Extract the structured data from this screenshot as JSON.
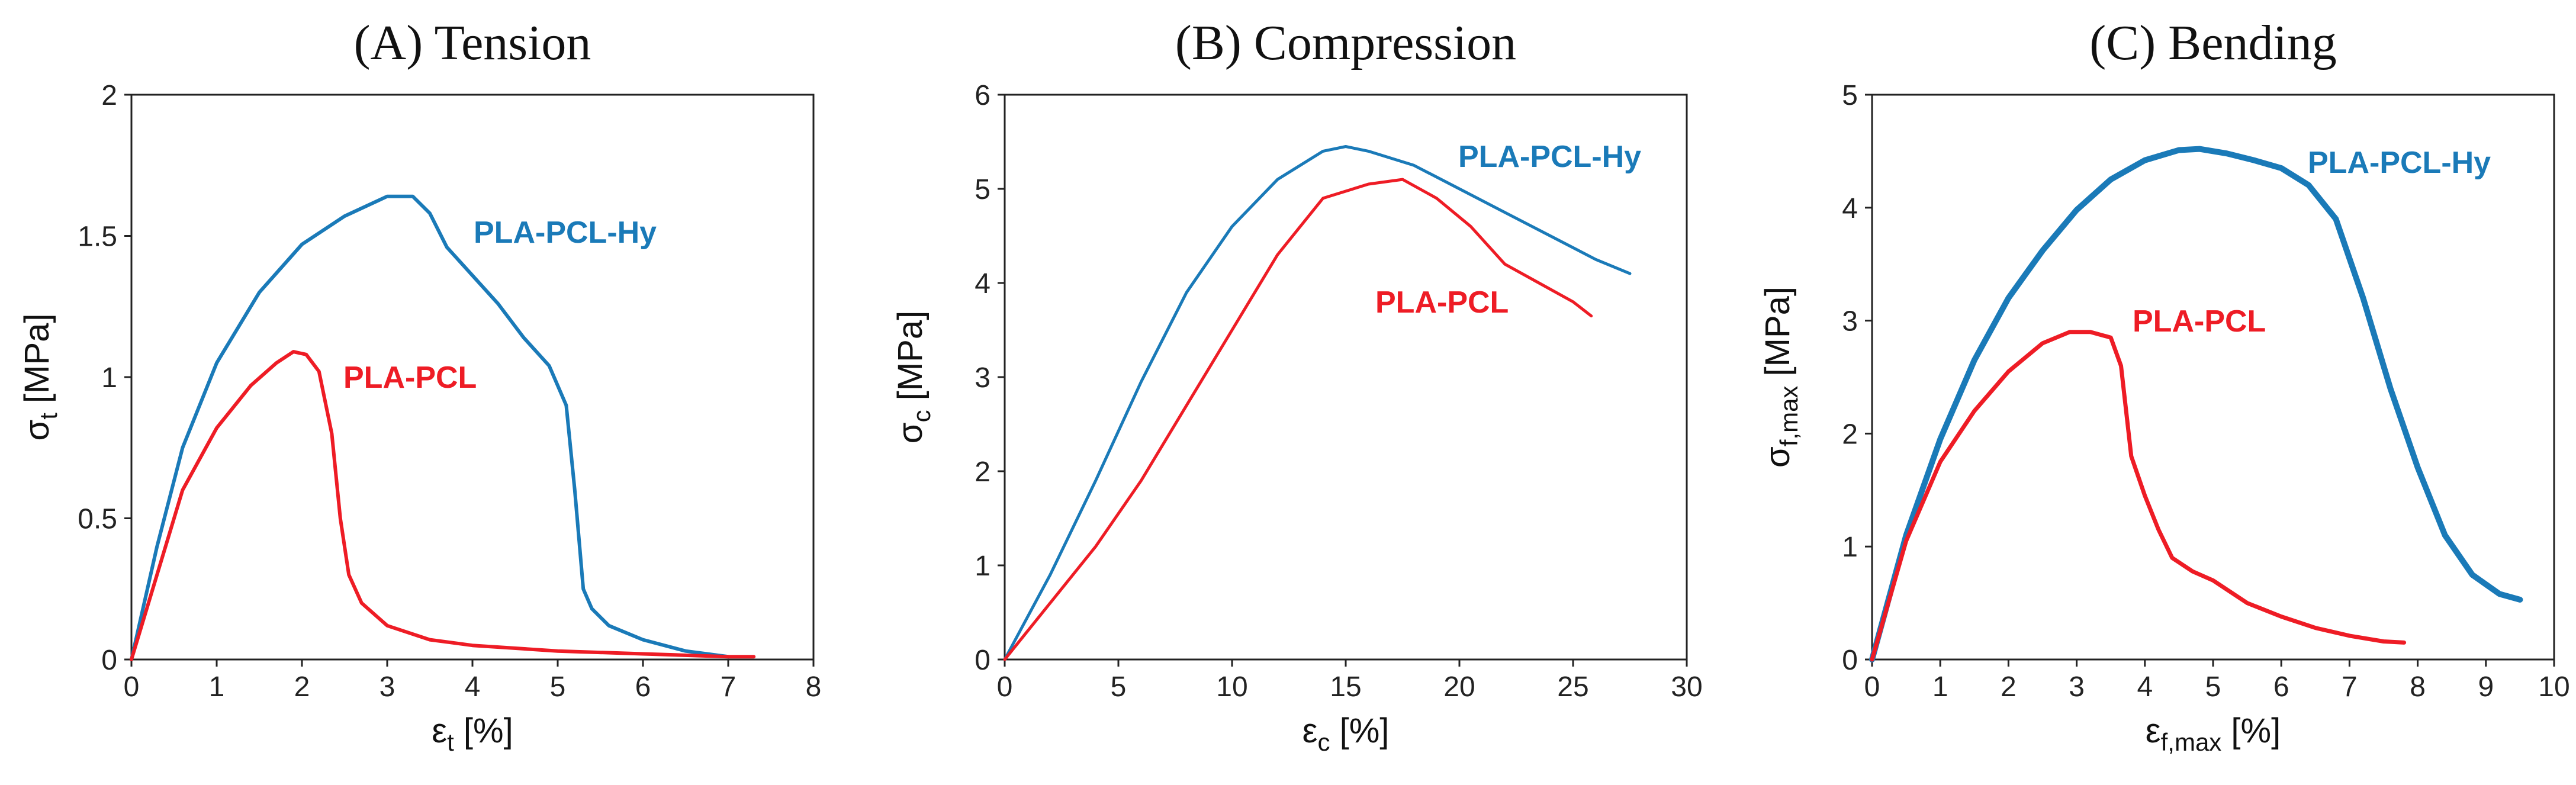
{
  "chart_data": [
    {
      "id": "tension",
      "type": "line",
      "title": "(A) Tension",
      "xlabel": {
        "main": "ε",
        "sub": "t",
        "unit": " [%]"
      },
      "ylabel": {
        "main": "σ",
        "sub": "t",
        "unit": " [MPa]"
      },
      "xlim": [
        0,
        8
      ],
      "ylim": [
        0,
        2
      ],
      "xticks": [
        0,
        1,
        2,
        3,
        4,
        5,
        6,
        7,
        8
      ],
      "yticks": [
        0,
        0.5,
        1,
        1.5,
        2
      ],
      "xtick_labels": [
        "0",
        "1",
        "2",
        "3",
        "4",
        "5",
        "6",
        "7",
        "8"
      ],
      "ytick_labels": [
        "0",
        "0.5",
        "1",
        "1.5",
        "2"
      ],
      "series": [
        {
          "name": "PLA-PCL-Hy",
          "color": "#1a7ab8",
          "x": [
            0,
            0.3,
            0.6,
            1.0,
            1.5,
            2.0,
            2.5,
            3.0,
            3.3,
            3.5,
            3.7,
            4.0,
            4.3,
            4.6,
            4.9,
            5.1,
            5.2,
            5.3,
            5.4,
            5.6,
            6.0,
            6.5,
            7.0
          ],
          "y": [
            0,
            0.4,
            0.75,
            1.05,
            1.3,
            1.47,
            1.57,
            1.64,
            1.64,
            1.58,
            1.46,
            1.36,
            1.26,
            1.14,
            1.04,
            0.9,
            0.6,
            0.25,
            0.18,
            0.12,
            0.07,
            0.03,
            0.01
          ]
        },
        {
          "name": "PLA-PCL",
          "color": "#ee1c25",
          "x": [
            0,
            0.3,
            0.6,
            1.0,
            1.4,
            1.7,
            1.9,
            2.05,
            2.2,
            2.35,
            2.45,
            2.55,
            2.7,
            3.0,
            3.5,
            4.0,
            5.0,
            6.0,
            7.0,
            7.3
          ],
          "y": [
            0,
            0.3,
            0.6,
            0.82,
            0.97,
            1.05,
            1.09,
            1.08,
            1.02,
            0.8,
            0.5,
            0.3,
            0.2,
            0.12,
            0.07,
            0.05,
            0.03,
            0.02,
            0.01,
            0.01
          ]
        }
      ]
    },
    {
      "id": "compression",
      "type": "line",
      "title": "(B) Compression",
      "xlabel": {
        "main": "ε",
        "sub": "c",
        "unit": " [%]"
      },
      "ylabel": {
        "main": "σ",
        "sub": "c",
        "unit": " [MPa]"
      },
      "xlim": [
        0,
        30
      ],
      "ylim": [
        0,
        6
      ],
      "xticks": [
        0,
        5,
        10,
        15,
        20,
        25,
        30
      ],
      "yticks": [
        0,
        1,
        2,
        3,
        4,
        5,
        6
      ],
      "xtick_labels": [
        "0",
        "5",
        "10",
        "15",
        "20",
        "25",
        "30"
      ],
      "ytick_labels": [
        "0",
        "1",
        "2",
        "3",
        "4",
        "5",
        "6"
      ],
      "series": [
        {
          "name": "PLA-PCL-Hy",
          "color": "#1a7ab8",
          "x": [
            0,
            2,
            4,
            6,
            8,
            10,
            12,
            14,
            15,
            16,
            18,
            20,
            22,
            24,
            26,
            27.5
          ],
          "y": [
            0,
            0.9,
            1.9,
            2.95,
            3.9,
            4.6,
            5.1,
            5.4,
            5.45,
            5.4,
            5.25,
            5.0,
            4.75,
            4.5,
            4.25,
            4.1
          ]
        },
        {
          "name": "PLA-PCL",
          "color": "#ee1c25",
          "x": [
            0,
            2,
            4,
            6,
            8,
            10,
            12,
            14,
            16,
            17.5,
            19,
            20.5,
            22,
            23.5,
            25,
            25.8
          ],
          "y": [
            0,
            0.6,
            1.2,
            1.9,
            2.7,
            3.5,
            4.3,
            4.9,
            5.05,
            5.1,
            4.9,
            4.6,
            4.2,
            4.0,
            3.8,
            3.65
          ]
        }
      ]
    },
    {
      "id": "bending",
      "type": "line",
      "title": "(C) Bending",
      "xlabel": {
        "main": "ε",
        "sub": "f,max",
        "unit": " [%]"
      },
      "ylabel": {
        "main": "σ",
        "sub": "f,max",
        "unit": " [MPa]"
      },
      "xlim": [
        0,
        10
      ],
      "ylim": [
        0,
        5
      ],
      "xticks": [
        0,
        1,
        2,
        3,
        4,
        5,
        6,
        7,
        8,
        9,
        10
      ],
      "yticks": [
        0,
        1,
        2,
        3,
        4,
        5
      ],
      "xtick_labels": [
        "0",
        "1",
        "2",
        "3",
        "4",
        "5",
        "6",
        "7",
        "8",
        "9",
        "10"
      ],
      "ytick_labels": [
        "0",
        "1",
        "2",
        "3",
        "4",
        "5"
      ],
      "series": [
        {
          "name": "PLA-PCL-Hy",
          "color": "#1a7ab8",
          "x": [
            0,
            0.5,
            1.0,
            1.5,
            2.0,
            2.5,
            3.0,
            3.5,
            4.0,
            4.5,
            4.8,
            5.2,
            5.6,
            6.0,
            6.4,
            6.8,
            7.2,
            7.6,
            8.0,
            8.4,
            8.8,
            9.2,
            9.5
          ],
          "y": [
            0,
            1.1,
            1.95,
            2.65,
            3.2,
            3.62,
            3.98,
            4.25,
            4.42,
            4.51,
            4.52,
            4.48,
            4.42,
            4.35,
            4.2,
            3.9,
            3.2,
            2.4,
            1.7,
            1.1,
            0.75,
            0.58,
            0.53
          ]
        },
        {
          "name": "PLA-PCL",
          "color": "#ee1c25",
          "x": [
            0,
            0.5,
            1.0,
            1.5,
            2.0,
            2.5,
            2.9,
            3.2,
            3.5,
            3.65,
            3.8,
            4.0,
            4.2,
            4.4,
            4.7,
            5.0,
            5.5,
            6.0,
            6.5,
            7.0,
            7.5,
            7.8
          ],
          "y": [
            0,
            1.05,
            1.75,
            2.2,
            2.55,
            2.8,
            2.9,
            2.9,
            2.85,
            2.6,
            1.8,
            1.45,
            1.15,
            0.9,
            0.78,
            0.7,
            0.5,
            0.38,
            0.28,
            0.21,
            0.16,
            0.15
          ]
        }
      ]
    }
  ]
}
